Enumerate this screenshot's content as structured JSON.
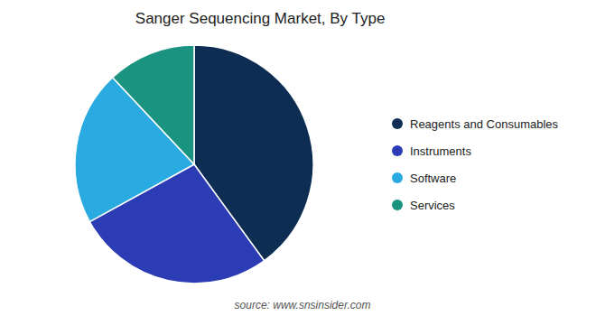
{
  "chart_data": {
    "type": "pie",
    "title": "Sanger Sequencing Market, By Type",
    "categories": [
      "Reagents and Consumables",
      "Instruments",
      "Software",
      "Services"
    ],
    "values": [
      40,
      27,
      21,
      12
    ],
    "colors": [
      "#0d2d52",
      "#2b3cb5",
      "#29aae1",
      "#1a9480"
    ],
    "legend": "right",
    "annotations": [
      "source: www.snsinsider.com"
    ]
  }
}
